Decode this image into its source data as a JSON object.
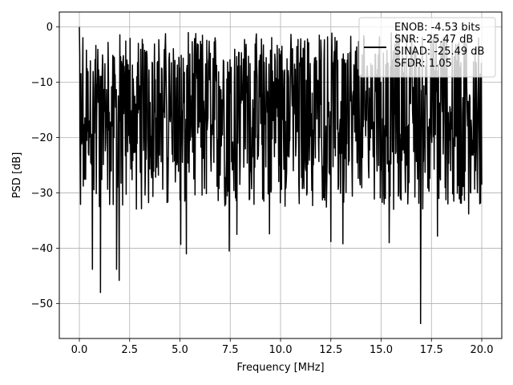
{
  "chart_data": {
    "type": "line",
    "title": "",
    "xlabel": "Frequency [MHz]",
    "ylabel": "PSD [dB]",
    "xlim": [
      -0.996,
      20.996
    ],
    "ylim": [
      -56.3,
      2.7
    ],
    "xticks": [
      0.0,
      2.5,
      5.0,
      7.5,
      10.0,
      12.5,
      15.0,
      17.5,
      20.0
    ],
    "xtick_labels": [
      "0.0",
      "2.5",
      "5.0",
      "7.5",
      "10.0",
      "12.5",
      "15.0",
      "17.5",
      "20.0"
    ],
    "yticks": [
      0,
      -10,
      -20,
      -30,
      -40,
      -50
    ],
    "ytick_labels": [
      "0",
      "−10",
      "−20",
      "−30",
      "−40",
      "−50"
    ],
    "grid": true,
    "legend_position": "top-right",
    "series": [
      {
        "name": "ENOB: -4.53 bits\nSNR: -25.47 dB\nSINAD: -25.49 dB\nSFDR: 1.05",
        "color": "#000000",
        "points_sampled": 1024,
        "range": [
          0.0,
          20.0
        ],
        "typical_band": [
          -25,
          -5
        ],
        "peaks": [
          {
            "x": 0.0,
            "y": 0.0
          },
          {
            "x": 0.03,
            "y": -18.5
          },
          {
            "x": 0.25,
            "y": -27.5
          },
          {
            "x": 0.65,
            "y": -43.8
          },
          {
            "x": 1.05,
            "y": -48.0
          },
          {
            "x": 1.85,
            "y": -43.8
          },
          {
            "x": 1.98,
            "y": -45.8
          },
          {
            "x": 5.04,
            "y": -39.3
          },
          {
            "x": 5.32,
            "y": -41.0
          },
          {
            "x": 7.45,
            "y": -40.5
          },
          {
            "x": 7.83,
            "y": -37.5
          },
          {
            "x": 9.45,
            "y": -37.4
          },
          {
            "x": 12.5,
            "y": -38.8
          },
          {
            "x": 13.1,
            "y": -39.2
          },
          {
            "x": 15.4,
            "y": -39.0
          },
          {
            "x": 16.96,
            "y": -53.6
          },
          {
            "x": 17.8,
            "y": -37.8
          },
          {
            "x": 19.35,
            "y": -33.8
          },
          {
            "x": 20.0,
            "y": -28.5
          }
        ]
      }
    ]
  }
}
